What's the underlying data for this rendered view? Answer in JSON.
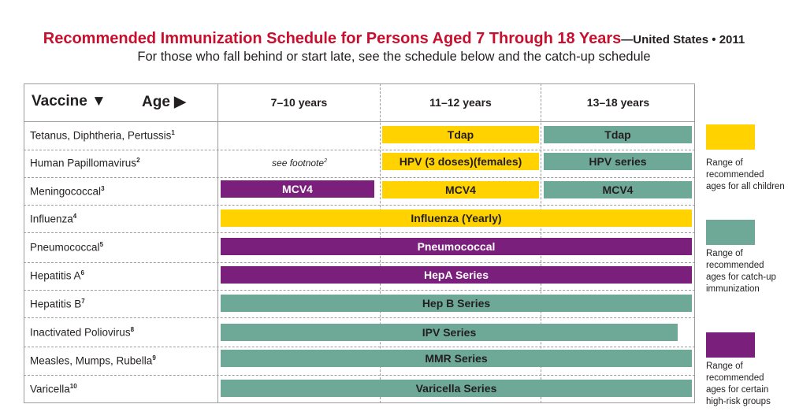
{
  "title": {
    "main": "Recommended Immunization Schedule for Persons Aged 7 Through 18 Years",
    "suffix": "—United States • 2011",
    "subtitle": "For those who fall behind or start late, see the schedule below and the catch-up schedule"
  },
  "header": {
    "vaccine": "Vaccine ▼",
    "age": "Age ▶",
    "col1": "7–10 years",
    "col2": "11–12 years",
    "col3": "13–18 years"
  },
  "rows": [
    {
      "name": "Tetanus, Diphtheria, Pertussis",
      "sup": "1"
    },
    {
      "name": "Human Papillomavirus",
      "sup": "2"
    },
    {
      "name": "Meningococcal",
      "sup": "3"
    },
    {
      "name": "Influenza",
      "sup": "4"
    },
    {
      "name": "Pneumococcal",
      "sup": "5"
    },
    {
      "name": "Hepatitis A",
      "sup": "6"
    },
    {
      "name": "Hepatitis B",
      "sup": "7"
    },
    {
      "name": "Inactivated Poliovirus",
      "sup": "8"
    },
    {
      "name": "Measles, Mumps, Rubella",
      "sup": "9"
    },
    {
      "name": "Varicella",
      "sup": "10"
    }
  ],
  "bars": {
    "tdap_11_12": "Tdap",
    "tdap_13_18": "Tdap",
    "hpv_note": "see footnote",
    "hpv_note_sup": "2",
    "hpv_11_12": "HPV (3 doses)(females)",
    "hpv_13_18": "HPV series",
    "mcv4_7_10": "MCV4",
    "mcv4_11_12": "MCV4",
    "mcv4_13_18": "MCV4",
    "influenza": "Influenza (Yearly)",
    "pneumococcal": "Pneumococcal",
    "hepa": "HepA Series",
    "hepb": "Hep B Series",
    "ipv": "IPV Series",
    "mmr": "MMR Series",
    "varicella": "Varicella Series"
  },
  "legend": {
    "all_children": "Range of recommended ages for all children",
    "catch_up": "Range of recommended ages for catch-up immunization",
    "high_risk": "Range of recommended ages for certain high-risk groups"
  },
  "colors": {
    "all_children": "#ffd200",
    "catch_up": "#6ea896",
    "high_risk": "#7b1f7c",
    "title": "#c8102e"
  }
}
